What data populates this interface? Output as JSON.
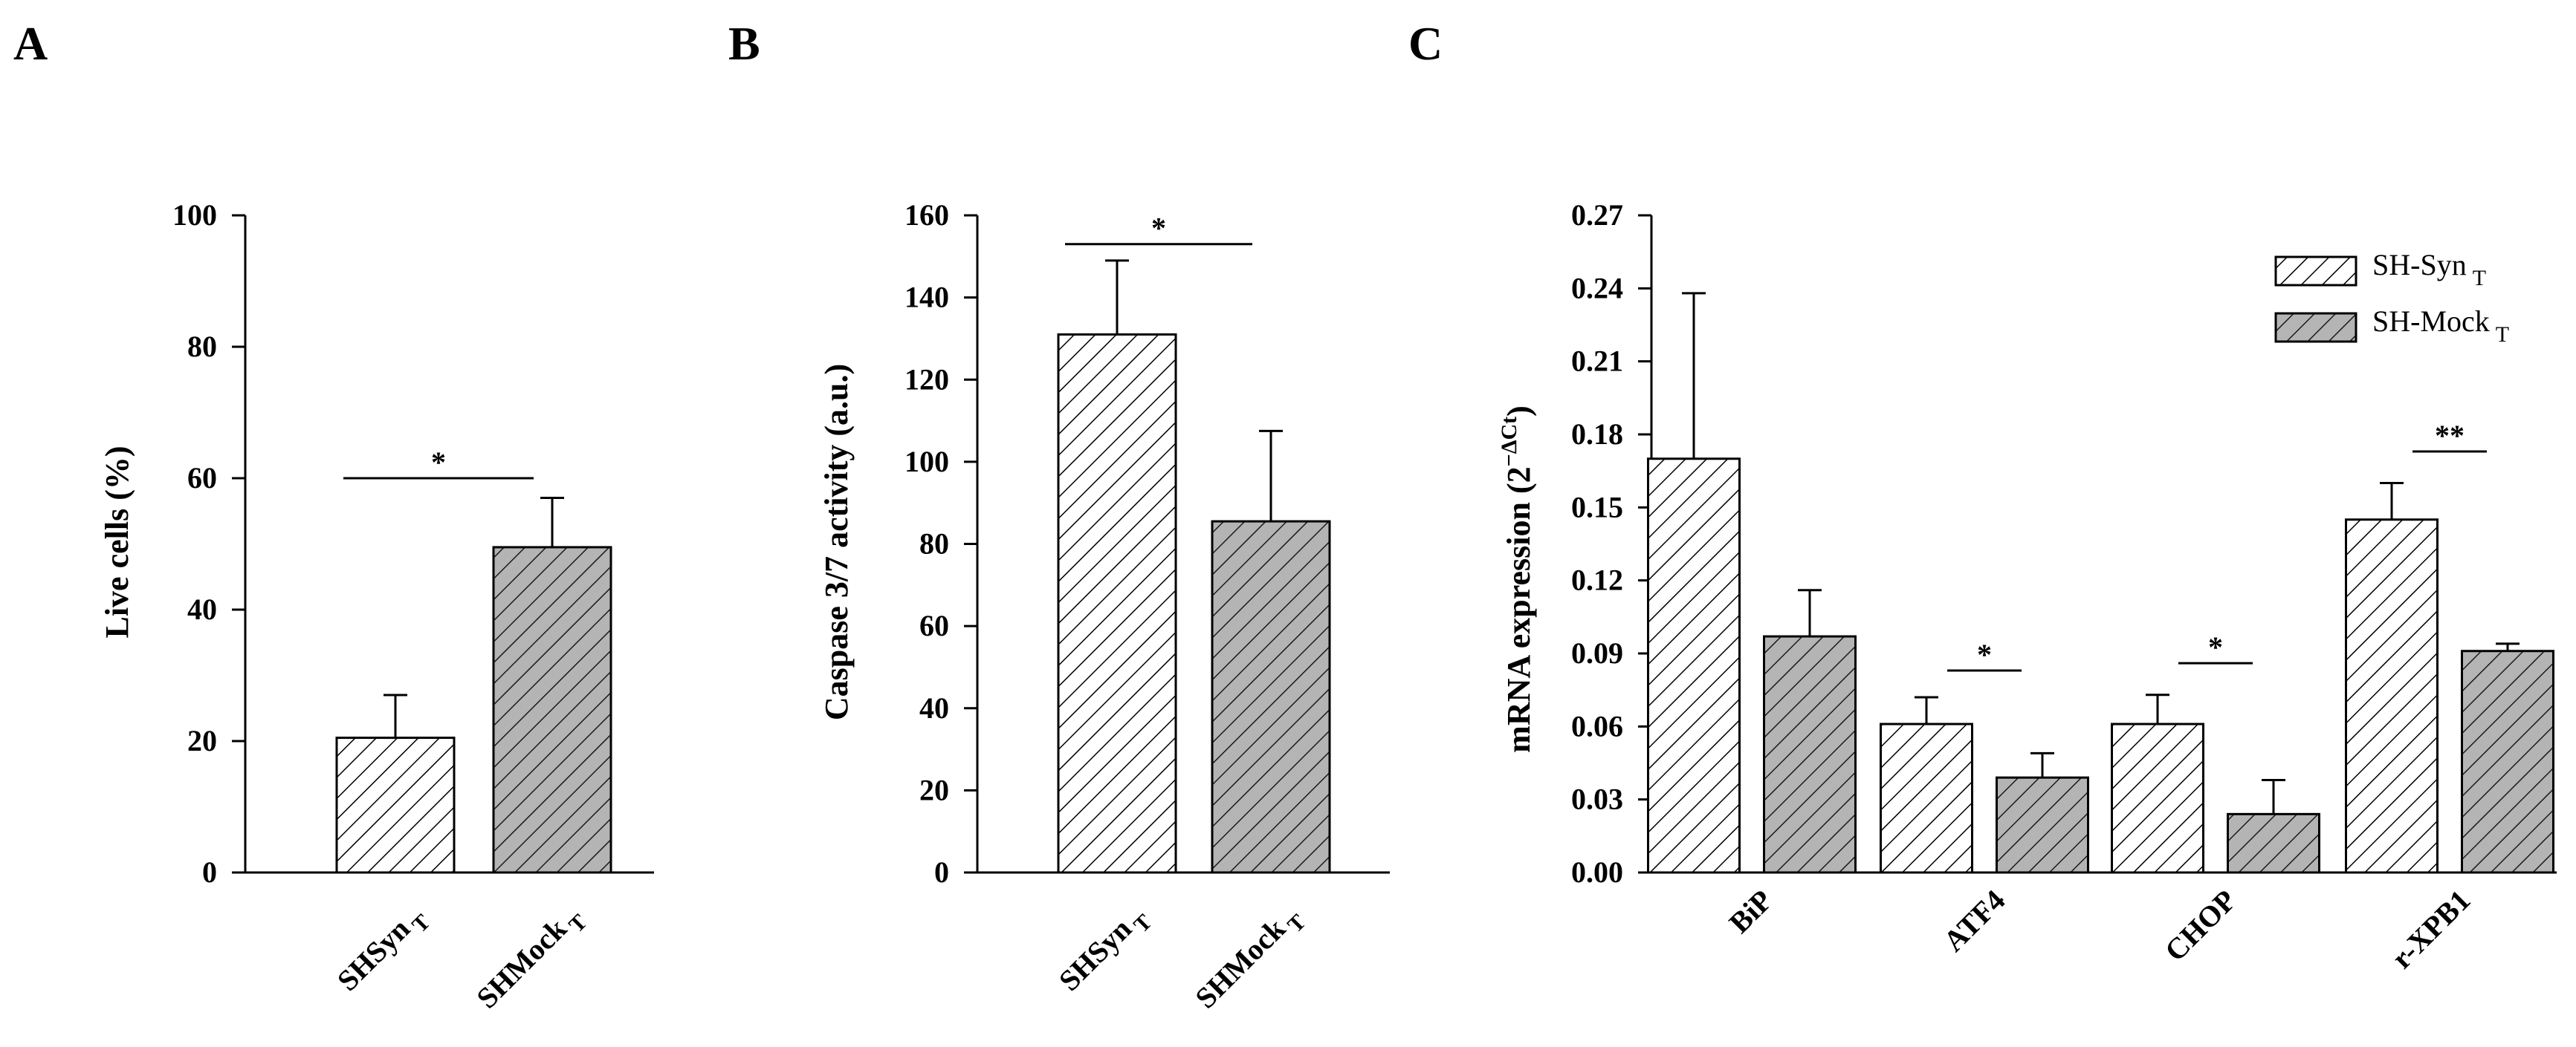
{
  "chart_data": [
    {
      "type": "bar",
      "panel": "A",
      "ylabel": "Live cells (%)",
      "ylim": [
        0,
        100
      ],
      "yticks": [
        0,
        20,
        40,
        60,
        80,
        100
      ],
      "ytick_decimals": 0,
      "categories": [
        {
          "main": "SHSyn",
          "sub": "T"
        },
        {
          "main": "SHMock",
          "sub": "T"
        }
      ],
      "values": [
        20.5,
        49.5
      ],
      "errors": [
        6.5,
        7.5
      ],
      "patterns": [
        "hatch-white",
        "hatch-gray"
      ],
      "significance": [
        {
          "label": "*",
          "y": 60
        }
      ]
    },
    {
      "type": "bar",
      "panel": "B",
      "ylabel": "Caspase 3/7 activity (a.u.)",
      "ylim": [
        0,
        160
      ],
      "yticks": [
        0,
        20,
        40,
        60,
        80,
        100,
        120,
        140,
        160
      ],
      "ytick_decimals": 0,
      "categories": [
        {
          "main": "SHSyn",
          "sub": "T"
        },
        {
          "main": "SHMock",
          "sub": "T"
        }
      ],
      "values": [
        131,
        85.5
      ],
      "errors": [
        18,
        22
      ],
      "patterns": [
        "hatch-white",
        "hatch-gray"
      ],
      "significance": [
        {
          "label": "*",
          "y": 153
        }
      ]
    },
    {
      "type": "bar",
      "panel": "C",
      "ylabel": "mRNA expression (2",
      "ylabel_sup": "−ΔCt",
      "ylabel_close": ")",
      "ylim": [
        0,
        0.27
      ],
      "yticks": [
        0,
        0.03,
        0.06,
        0.09,
        0.12,
        0.15,
        0.18,
        0.21,
        0.24,
        0.27
      ],
      "ytick_decimals": 2,
      "categories": [
        "BiP",
        "ATF4",
        "CHOP",
        "r-XPB1"
      ],
      "series": [
        {
          "name": "SH-Syn",
          "sub": "T",
          "pattern": "hatch-white",
          "values": [
            0.17,
            0.061,
            0.061,
            0.145
          ],
          "errors": [
            0.068,
            0.011,
            0.012,
            0.015
          ]
        },
        {
          "name": "SH-Mock",
          "sub": "T",
          "pattern": "hatch-gray",
          "values": [
            0.097,
            0.039,
            0.024,
            0.091
          ],
          "errors": [
            0.019,
            0.01,
            0.014,
            0.003
          ]
        }
      ],
      "legend": "top-right",
      "significance": [
        {
          "category_index": 1,
          "label": "*",
          "y": 0.083
        },
        {
          "category_index": 2,
          "label": "*",
          "y": 0.086
        },
        {
          "category_index": 3,
          "label": "**",
          "y": 0.173
        }
      ]
    }
  ]
}
